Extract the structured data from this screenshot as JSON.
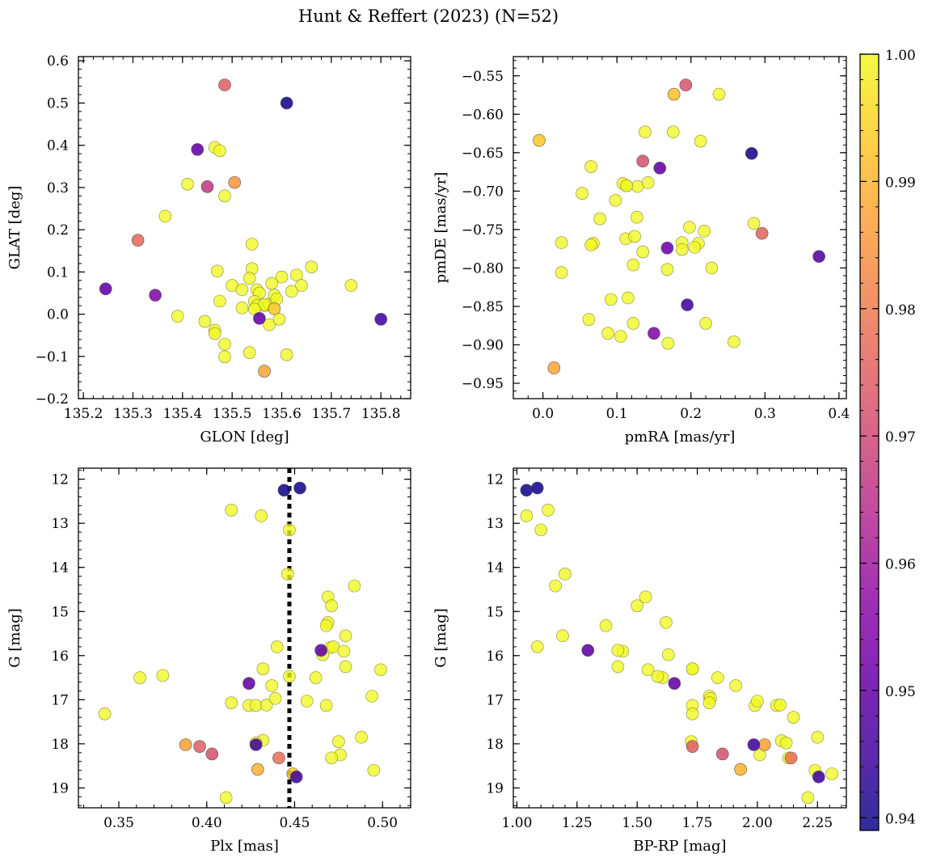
{
  "figure": {
    "title": "Hunt & Reffert (2023) (N=52)"
  },
  "colorbar": {
    "min": 0.939,
    "max": 1.0,
    "ticks": [
      0.94,
      0.95,
      0.96,
      0.97,
      0.98,
      0.99,
      1.0
    ],
    "tick_labels": [
      "0.94",
      "0.95",
      "0.96",
      "0.97",
      "0.98",
      "0.99",
      "1.00"
    ],
    "colormap": "plasma"
  },
  "chart_data": [
    {
      "type": "scatter",
      "id": "glon-glat",
      "xlabel": "GLON [deg]",
      "ylabel": "GLAT [deg]",
      "xlim": [
        135.19,
        135.86
      ],
      "ylim": [
        -0.2,
        0.61
      ],
      "xticks": [
        135.2,
        135.3,
        135.4,
        135.5,
        135.6,
        135.7,
        135.8
      ],
      "xtick_labels": [
        "135.2",
        "135.3",
        "135.4",
        "135.5",
        "135.6",
        "135.7",
        "135.8"
      ],
      "yticks": [
        -0.2,
        -0.1,
        0.0,
        0.1,
        0.2,
        0.3,
        0.4,
        0.5,
        0.6
      ],
      "ytick_labels": [
        "−0.2",
        "−0.1",
        "0.0",
        "0.1",
        "0.2",
        "0.3",
        "0.4",
        "0.5",
        "0.6"
      ],
      "x": [
        135.61,
        135.43,
        135.245,
        135.345,
        135.555,
        135.8,
        135.485,
        135.505,
        135.31,
        135.45,
        135.565,
        135.585,
        135.465,
        135.475,
        135.41,
        135.485,
        135.365,
        135.54,
        135.54,
        135.66,
        135.6,
        135.63,
        135.47,
        135.5,
        135.52,
        135.535,
        135.55,
        135.555,
        135.58,
        135.64,
        135.74,
        135.475,
        135.545,
        135.565,
        135.575,
        135.585,
        135.55,
        135.52,
        135.39,
        135.445,
        135.575,
        135.595,
        135.565,
        135.465,
        135.465,
        135.485,
        135.535,
        135.61,
        135.485,
        135.62,
        135.59,
        135.545
      ],
      "y": [
        0.5,
        0.39,
        0.06,
        0.045,
        -0.01,
        -0.012,
        0.543,
        0.312,
        0.175,
        0.302,
        -0.135,
        0.013,
        0.395,
        0.387,
        0.308,
        0.28,
        0.232,
        0.166,
        0.108,
        0.112,
        0.088,
        0.093,
        0.102,
        0.068,
        0.058,
        0.085,
        0.058,
        0.05,
        0.073,
        0.068,
        0.068,
        0.031,
        0.03,
        0.02,
        0.024,
        0.045,
        0.02,
        0.015,
        -0.005,
        -0.017,
        -0.025,
        -0.012,
        0.023,
        -0.038,
        -0.046,
        -0.071,
        -0.091,
        -0.096,
        -0.101,
        0.054,
        0.036,
        0.012
      ],
      "c": [
        0.94,
        0.95,
        0.95,
        0.955,
        0.95,
        0.945,
        0.975,
        0.985,
        0.977,
        0.967,
        0.988,
        0.993,
        1.0,
        1.0,
        1.0,
        1.0,
        1.0,
        1.0,
        1.0,
        1.0,
        1.0,
        1.0,
        1.0,
        1.0,
        1.0,
        1.0,
        1.0,
        1.0,
        1.0,
        1.0,
        1.0,
        1.0,
        1.0,
        1.0,
        1.0,
        1.0,
        1.0,
        1.0,
        1.0,
        1.0,
        1.0,
        1.0,
        1.0,
        1.0,
        1.0,
        1.0,
        1.0,
        1.0,
        1.0,
        1.0,
        1.0,
        1.0
      ]
    },
    {
      "type": "scatter",
      "id": "pmra-pmde",
      "xlabel": "pmRA [mas/yr]",
      "ylabel": "pmDE [mas/yr]",
      "xlim": [
        -0.04,
        0.41
      ],
      "ylim": [
        -0.97,
        -0.525
      ],
      "xticks": [
        0.0,
        0.1,
        0.2,
        0.3,
        0.4
      ],
      "xtick_labels": [
        "0.0",
        "0.1",
        "0.2",
        "0.3",
        "0.4"
      ],
      "yticks": [
        -0.95,
        -0.9,
        -0.85,
        -0.8,
        -0.75,
        -0.7,
        -0.65,
        -0.6,
        -0.55
      ],
      "ytick_labels": [
        "−0.95",
        "−0.90",
        "−0.85",
        "−0.80",
        "−0.75",
        "−0.70",
        "−0.65",
        "−0.60",
        "−0.55"
      ],
      "x": [
        -0.005,
        0.015,
        0.177,
        0.193,
        0.135,
        0.296,
        0.282,
        0.158,
        0.168,
        0.373,
        0.195,
        0.15,
        0.238,
        0.138,
        0.176,
        0.213,
        0.065,
        0.053,
        0.098,
        0.108,
        0.128,
        0.142,
        0.113,
        0.077,
        0.127,
        0.198,
        0.218,
        0.285,
        0.025,
        0.068,
        0.065,
        0.112,
        0.188,
        0.21,
        0.205,
        0.135,
        0.188,
        0.122,
        0.228,
        0.025,
        0.168,
        0.092,
        0.115,
        0.062,
        0.122,
        0.088,
        0.105,
        0.22,
        0.258,
        0.169,
        0.113,
        0.124
      ],
      "y": [
        -0.634,
        -0.93,
        -0.574,
        -0.562,
        -0.661,
        -0.755,
        -0.651,
        -0.67,
        -0.774,
        -0.785,
        -0.848,
        -0.885,
        -0.574,
        -0.623,
        -0.623,
        -0.635,
        -0.668,
        -0.703,
        -0.712,
        -0.69,
        -0.694,
        -0.689,
        -0.693,
        -0.736,
        -0.734,
        -0.747,
        -0.752,
        -0.742,
        -0.767,
        -0.768,
        -0.77,
        -0.762,
        -0.767,
        -0.768,
        -0.773,
        -0.779,
        -0.776,
        -0.796,
        -0.8,
        -0.806,
        -0.802,
        -0.841,
        -0.839,
        -0.867,
        -0.872,
        -0.885,
        -0.889,
        -0.872,
        -0.896,
        -0.898,
        -0.693,
        -0.759
      ],
      "c": [
        0.993,
        0.988,
        0.992,
        0.973,
        0.972,
        0.976,
        0.94,
        0.95,
        0.952,
        0.948,
        0.945,
        0.955,
        1.0,
        1.0,
        1.0,
        1.0,
        1.0,
        1.0,
        1.0,
        1.0,
        1.0,
        1.0,
        1.0,
        1.0,
        1.0,
        1.0,
        1.0,
        1.0,
        1.0,
        1.0,
        1.0,
        1.0,
        1.0,
        1.0,
        1.0,
        1.0,
        1.0,
        1.0,
        1.0,
        1.0,
        1.0,
        1.0,
        1.0,
        1.0,
        1.0,
        1.0,
        1.0,
        1.0,
        1.0,
        1.0,
        1.0,
        1.0
      ]
    },
    {
      "type": "scatter",
      "id": "plx-g",
      "xlabel": "Plx [mas]",
      "ylabel": "G [mag]",
      "xlim": [
        0.327,
        0.516
      ],
      "ylim": [
        19.45,
        11.75
      ],
      "invert_y": true,
      "vline": 0.447,
      "xticks": [
        0.35,
        0.4,
        0.45,
        0.5
      ],
      "xtick_labels": [
        "0.35",
        "0.40",
        "0.45",
        "0.50"
      ],
      "yticks": [
        12,
        13,
        14,
        15,
        16,
        17,
        18,
        19
      ],
      "ytick_labels": [
        "12",
        "13",
        "14",
        "15",
        "16",
        "17",
        "18",
        "19"
      ],
      "x": [
        0.444,
        0.453,
        0.465,
        0.424,
        0.428,
        0.451,
        0.388,
        0.396,
        0.403,
        0.441,
        0.429,
        0.449,
        0.414,
        0.431,
        0.447,
        0.446,
        0.484,
        0.469,
        0.471,
        0.469,
        0.468,
        0.47,
        0.479,
        0.472,
        0.44,
        0.466,
        0.478,
        0.479,
        0.432,
        0.499,
        0.342,
        0.362,
        0.375,
        0.437,
        0.424,
        0.428,
        0.434,
        0.414,
        0.447,
        0.439,
        0.462,
        0.457,
        0.468,
        0.494,
        0.475,
        0.432,
        0.428,
        0.488,
        0.476,
        0.471,
        0.495,
        0.411
      ],
      "y": [
        12.25,
        12.2,
        15.88,
        16.63,
        18.02,
        18.75,
        18.02,
        18.06,
        18.23,
        18.32,
        18.58,
        18.68,
        12.7,
        12.83,
        13.15,
        14.15,
        14.42,
        14.67,
        14.87,
        15.25,
        15.32,
        15.82,
        15.55,
        15.8,
        15.8,
        15.98,
        15.9,
        16.25,
        16.3,
        16.32,
        17.32,
        16.5,
        16.45,
        16.68,
        17.13,
        17.13,
        17.12,
        17.07,
        16.47,
        16.97,
        16.5,
        17.03,
        17.13,
        16.92,
        17.95,
        17.92,
        17.98,
        17.85,
        18.25,
        18.32,
        18.6,
        19.22
      ],
      "c": [
        0.94,
        0.94,
        0.95,
        0.95,
        0.945,
        0.945,
        0.987,
        0.975,
        0.972,
        0.978,
        0.99,
        0.993,
        1.0,
        1.0,
        1.0,
        1.0,
        1.0,
        1.0,
        1.0,
        1.0,
        1.0,
        1.0,
        1.0,
        1.0,
        1.0,
        1.0,
        1.0,
        1.0,
        1.0,
        1.0,
        1.0,
        1.0,
        1.0,
        1.0,
        1.0,
        1.0,
        1.0,
        1.0,
        1.0,
        1.0,
        1.0,
        1.0,
        1.0,
        1.0,
        1.0,
        1.0,
        1.0,
        1.0,
        1.0,
        1.0,
        1.0,
        1.0
      ]
    },
    {
      "type": "scatter",
      "id": "bprp-g",
      "xlabel": "BP-RP [mag]",
      "ylabel": "G [mag]",
      "xlim": [
        0.985,
        2.37
      ],
      "ylim": [
        19.45,
        11.75
      ],
      "invert_y": true,
      "xticks": [
        1.0,
        1.25,
        1.5,
        1.75,
        2.0,
        2.25
      ],
      "xtick_labels": [
        "1.00",
        "1.25",
        "1.50",
        "1.75",
        "2.00",
        "2.25"
      ],
      "yticks": [
        12,
        13,
        14,
        15,
        16,
        17,
        18,
        19
      ],
      "ytick_labels": [
        "12",
        "13",
        "14",
        "15",
        "16",
        "17",
        "18",
        "19"
      ],
      "x": [
        1.04,
        1.085,
        1.295,
        1.655,
        1.985,
        2.255,
        1.73,
        1.855,
        1.93,
        2.03,
        2.14,
        1.04,
        1.13,
        1.1,
        1.2,
        1.16,
        1.535,
        1.5,
        1.37,
        1.62,
        1.44,
        1.42,
        1.63,
        1.085,
        1.19,
        1.42,
        1.545,
        1.605,
        1.585,
        1.73,
        1.835,
        1.91,
        1.8,
        1.805,
        1.73,
        1.99,
        2.0,
        2.08,
        2.095,
        2.15,
        1.725,
        1.8,
        1.73,
        2.1,
        2.12,
        2.25,
        2.01,
        2.13,
        2.24,
        2.31,
        2.21,
        1.73
      ],
      "y": [
        12.25,
        12.2,
        15.88,
        16.63,
        18.02,
        18.75,
        18.06,
        18.23,
        18.58,
        18.02,
        18.32,
        12.83,
        12.7,
        13.15,
        14.15,
        14.42,
        14.67,
        14.87,
        15.32,
        15.25,
        15.9,
        16.25,
        15.98,
        15.8,
        15.55,
        15.88,
        16.32,
        16.5,
        16.47,
        16.3,
        16.5,
        16.68,
        16.92,
        16.97,
        17.13,
        17.13,
        17.03,
        17.13,
        17.12,
        17.4,
        17.95,
        17.07,
        17.32,
        17.93,
        17.98,
        17.85,
        18.25,
        18.32,
        18.6,
        18.68,
        19.22,
        16.3
      ],
      "c": [
        0.94,
        0.94,
        0.95,
        0.95,
        0.945,
        0.945,
        0.975,
        0.972,
        0.99,
        0.987,
        0.978,
        1.0,
        1.0,
        1.0,
        1.0,
        1.0,
        1.0,
        1.0,
        1.0,
        1.0,
        1.0,
        1.0,
        1.0,
        1.0,
        1.0,
        1.0,
        1.0,
        1.0,
        1.0,
        1.0,
        1.0,
        1.0,
        1.0,
        1.0,
        1.0,
        1.0,
        1.0,
        1.0,
        1.0,
        1.0,
        1.0,
        1.0,
        1.0,
        1.0,
        1.0,
        1.0,
        1.0,
        1.0,
        1.0,
        1.0,
        1.0,
        1.0
      ]
    }
  ]
}
